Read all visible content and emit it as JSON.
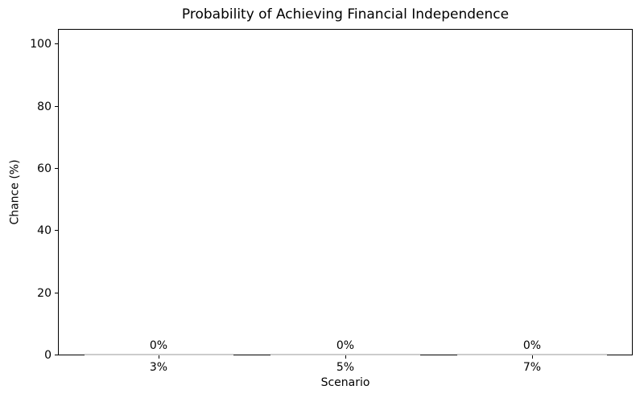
{
  "chart_data": {
    "type": "bar",
    "title": "Probability of Achieving Financial Independence",
    "xlabel": "Scenario",
    "ylabel": "Chance (%)",
    "categories": [
      "3%",
      "5%",
      "7%"
    ],
    "values": [
      0,
      0,
      0
    ],
    "bar_labels": [
      "0%",
      "0%",
      "0%"
    ],
    "yticks": [
      0,
      20,
      40,
      60,
      80,
      100
    ],
    "ylim": [
      0,
      105
    ],
    "grid": false,
    "legend": false,
    "bar_color_hex": "#cccccc",
    "spine_color_hex": "#000000",
    "text_color_hex": "#000000",
    "background_hex": "#ffffff"
  }
}
